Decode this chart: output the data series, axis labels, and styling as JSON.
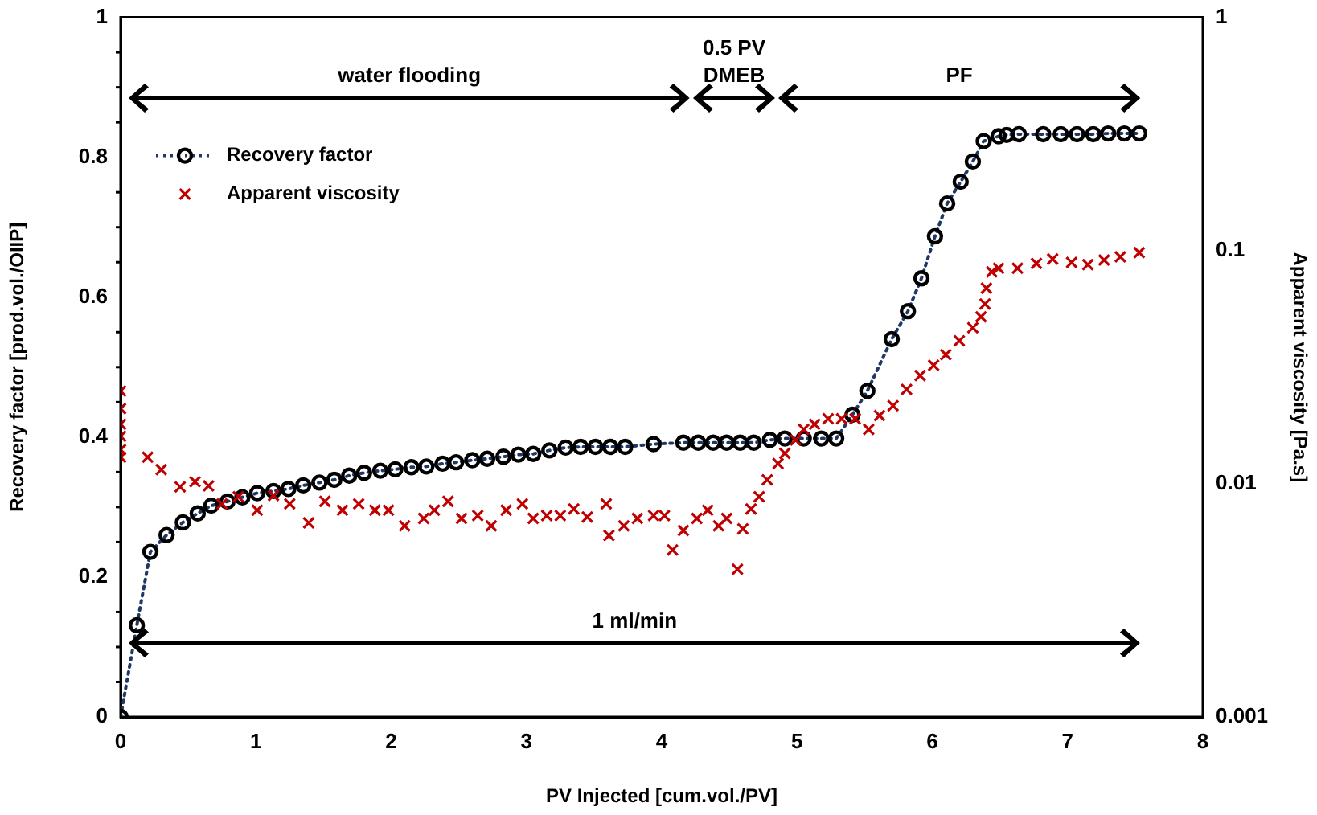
{
  "chart_data": {
    "type": "line",
    "xlabel": "PV Injected [cum.vol./PV]",
    "ylabel": "Recovery factor [prod.vol./OIIP]",
    "y2label": "Apparent viscosity [Pa.s]",
    "xlim": [
      0,
      8
    ],
    "xticks": [
      0,
      1,
      2,
      3,
      4,
      5,
      6,
      7,
      8
    ],
    "ylim": [
      0,
      1
    ],
    "yticks": [
      0,
      0.2,
      0.4,
      0.6,
      0.8,
      1
    ],
    "y2lim": [
      0.001,
      1
    ],
    "y2ticks": [
      0.001,
      0.01,
      0.1,
      1
    ],
    "log": "y2",
    "legend": "top left",
    "grid": false,
    "annotations": [
      "water flooding",
      "0.5 PV DMEB",
      "PF",
      "1 ml/min"
    ],
    "series": [
      {
        "name": "Recovery factor",
        "type": "line",
        "color": "#000000",
        "marker": "circle",
        "line_style": "dotted",
        "x": [
          0,
          0.12,
          0.22,
          0.34,
          0.46,
          0.57,
          0.67,
          0.79,
          0.9,
          1.01,
          1.13,
          1.24,
          1.35,
          1.47,
          1.58,
          1.69,
          1.8,
          1.92,
          2.03,
          2.15,
          2.26,
          2.38,
          2.48,
          2.6,
          2.71,
          2.83,
          2.94,
          3.05,
          3.17,
          3.29,
          3.4,
          3.51,
          3.62,
          3.73,
          3.94,
          4.16,
          4.27,
          4.38,
          4.48,
          4.58,
          4.68,
          4.8,
          4.91,
          5.05,
          5.18,
          5.29,
          5.41,
          5.52,
          5.7,
          5.82,
          5.92,
          6.02,
          6.11,
          6.21,
          6.3,
          6.38,
          6.49,
          6.55,
          6.64,
          6.82,
          6.95,
          7.07,
          7.19,
          7.3,
          7.42,
          7.53
        ],
        "values": [
          0,
          0.131,
          0.236,
          0.26,
          0.278,
          0.291,
          0.302,
          0.308,
          0.314,
          0.32,
          0.323,
          0.326,
          0.331,
          0.335,
          0.339,
          0.345,
          0.349,
          0.352,
          0.354,
          0.357,
          0.358,
          0.362,
          0.364,
          0.367,
          0.369,
          0.372,
          0.375,
          0.376,
          0.381,
          0.385,
          0.386,
          0.386,
          0.386,
          0.386,
          0.39,
          0.392,
          0.392,
          0.392,
          0.392,
          0.392,
          0.392,
          0.396,
          0.398,
          0.398,
          0.398,
          0.398,
          0.432,
          0.466,
          0.54,
          0.58,
          0.627,
          0.687,
          0.734,
          0.765,
          0.794,
          0.823,
          0.83,
          0.832,
          0.833,
          0.833,
          0.833,
          0.833,
          0.833,
          0.834,
          0.834,
          0.834
        ]
      },
      {
        "name": "Apparent viscosity",
        "type": "scatter",
        "color": "#c00000",
        "marker": "cross",
        "axis": "y2",
        "x": [
          0,
          0,
          0,
          0,
          0,
          0,
          0.2,
          0.3,
          0.44,
          0.55,
          0.65,
          0.75,
          0.87,
          1.01,
          1.13,
          1.25,
          1.39,
          1.51,
          1.64,
          1.76,
          1.88,
          1.98,
          2.1,
          2.24,
          2.32,
          2.42,
          2.52,
          2.64,
          2.74,
          2.85,
          2.97,
          3.05,
          3.15,
          3.25,
          3.35,
          3.45,
          3.59,
          3.61,
          3.72,
          3.82,
          3.94,
          4.02,
          4.08,
          4.16,
          4.26,
          4.34,
          4.42,
          4.48,
          4.56,
          4.6,
          4.66,
          4.72,
          4.78,
          4.86,
          4.91,
          4.99,
          5.05,
          5.13,
          5.23,
          5.33,
          5.43,
          5.53,
          5.61,
          5.71,
          5.81,
          5.91,
          6.01,
          6.1,
          6.2,
          6.3,
          6.36,
          6.39,
          6.4,
          6.44,
          6.49,
          6.63,
          6.77,
          6.89,
          7.03,
          7.15,
          7.27,
          7.39,
          7.53
        ],
        "values": [
          0.025,
          0.021,
          0.018,
          0.016,
          0.014,
          0.013,
          0.013,
          0.0115,
          0.0097,
          0.0102,
          0.0098,
          0.0082,
          0.0088,
          0.0077,
          0.0089,
          0.0082,
          0.0068,
          0.0084,
          0.0077,
          0.0082,
          0.0077,
          0.0077,
          0.0066,
          0.0071,
          0.0077,
          0.0084,
          0.0071,
          0.0073,
          0.0066,
          0.0077,
          0.0082,
          0.0071,
          0.0073,
          0.0073,
          0.0078,
          0.0072,
          0.0082,
          0.006,
          0.0066,
          0.0071,
          0.0073,
          0.0073,
          0.0052,
          0.0063,
          0.0071,
          0.0077,
          0.0066,
          0.0071,
          0.0043,
          0.0064,
          0.0078,
          0.0088,
          0.0104,
          0.0122,
          0.0135,
          0.0154,
          0.0171,
          0.018,
          0.019,
          0.019,
          0.019,
          0.0171,
          0.0196,
          0.0216,
          0.0254,
          0.0291,
          0.0322,
          0.0358,
          0.041,
          0.0467,
          0.052,
          0.059,
          0.069,
          0.081,
          0.084,
          0.084,
          0.088,
          0.092,
          0.089,
          0.087,
          0.091,
          0.094,
          0.098
        ]
      }
    ]
  }
}
